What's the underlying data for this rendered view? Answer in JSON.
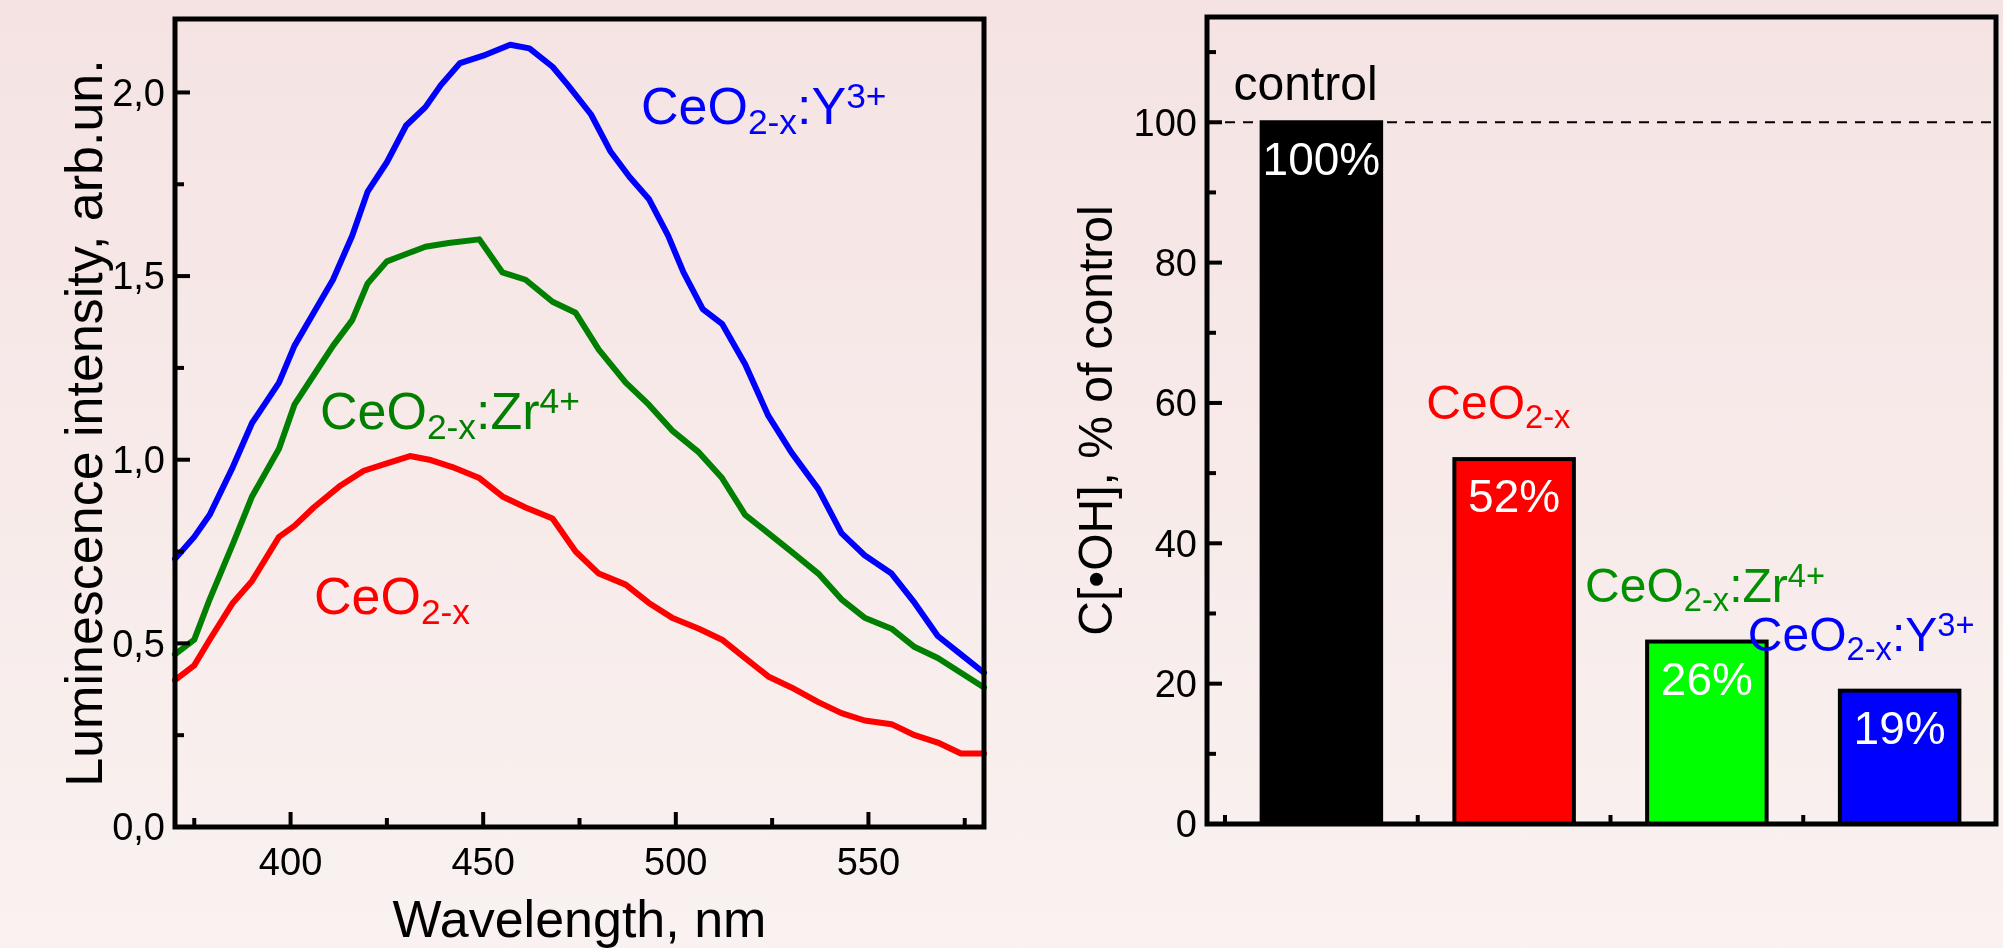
{
  "chart_data": [
    {
      "type": "line",
      "xlabel": "Wavelength, nm",
      "ylabel": "Luminescence intensity, arb.un.",
      "xlim": [
        370,
        580
      ],
      "ylim": [
        0,
        2.2
      ],
      "xticks": [
        {
          "value": 375,
          "label": null
        },
        400,
        {
          "value": 425,
          "label": null
        },
        450,
        {
          "value": 475,
          "label": null
        },
        500,
        {
          "value": 525,
          "label": null
        },
        550,
        {
          "value": 575,
          "label": null
        }
      ],
      "yticks": [
        {
          "value": 0,
          "label": "0,0"
        },
        {
          "value": 0.25,
          "label": null
        },
        {
          "value": 0.5,
          "label": "0,5"
        },
        {
          "value": 0.75,
          "label": null
        },
        {
          "value": 1,
          "label": "1,0"
        },
        {
          "value": 1.25,
          "label": null
        },
        {
          "value": 1.5,
          "label": "1,5"
        },
        {
          "value": 1.75,
          "label": null
        },
        {
          "value": 2,
          "label": "2,0"
        }
      ],
      "legend": false,
      "line_style": "solid",
      "marker": "none",
      "series": [
        {
          "name": "CeO$_{2-x}$:Y$^{3+}$",
          "color": "#0000ff",
          "x": [
            370,
            375,
            379,
            385,
            390,
            397,
            401,
            406,
            411,
            416,
            420,
            425,
            430,
            435,
            439,
            444,
            450,
            457,
            462,
            468,
            472,
            478,
            483,
            488,
            493,
            498,
            502,
            507,
            512,
            518,
            524,
            530,
            537,
            543,
            549,
            556,
            562,
            568,
            574,
            580
          ],
          "values": [
            0.73,
            0.79,
            0.85,
            0.98,
            1.1,
            1.21,
            1.31,
            1.4,
            1.49,
            1.61,
            1.73,
            1.81,
            1.91,
            1.96,
            2.02,
            2.08,
            2.1,
            2.13,
            2.12,
            2.07,
            2.02,
            1.94,
            1.84,
            1.77,
            1.71,
            1.61,
            1.51,
            1.41,
            1.37,
            1.26,
            1.12,
            1.02,
            0.92,
            0.8,
            0.74,
            0.69,
            0.61,
            0.52,
            0.47,
            0.42
          ]
        },
        {
          "name": "CeO$_{2-x}$:Zr$^{4+}$",
          "color": "#007f00",
          "x": [
            370,
            375,
            379,
            385,
            390,
            397,
            401,
            406,
            411,
            416,
            420,
            425,
            430,
            435,
            441,
            449,
            455,
            461,
            468,
            474,
            480,
            487,
            493,
            499,
            506,
            512,
            518,
            524,
            530,
            537,
            543,
            549,
            556,
            562,
            568,
            574,
            580
          ],
          "values": [
            0.47,
            0.51,
            0.62,
            0.77,
            0.9,
            1.03,
            1.15,
            1.23,
            1.31,
            1.38,
            1.48,
            1.54,
            1.56,
            1.58,
            1.59,
            1.6,
            1.51,
            1.49,
            1.43,
            1.4,
            1.3,
            1.21,
            1.15,
            1.08,
            1.02,
            0.95,
            0.85,
            0.8,
            0.75,
            0.69,
            0.62,
            0.57,
            0.54,
            0.49,
            0.46,
            0.42,
            0.38
          ]
        },
        {
          "name": "CeO$_{2-x}$",
          "color": "#ff0000",
          "x": [
            370,
            375,
            379,
            385,
            390,
            397,
            401,
            406,
            413,
            419,
            425,
            431,
            436,
            442,
            449,
            455,
            461,
            468,
            474,
            480,
            487,
            493,
            499,
            506,
            512,
            518,
            524,
            530,
            537,
            543,
            549,
            556,
            562,
            568,
            574,
            580
          ],
          "values": [
            0.4,
            0.44,
            0.51,
            0.61,
            0.67,
            0.79,
            0.82,
            0.87,
            0.93,
            0.97,
            0.99,
            1.01,
            1.0,
            0.98,
            0.95,
            0.9,
            0.87,
            0.84,
            0.75,
            0.69,
            0.66,
            0.61,
            0.57,
            0.54,
            0.51,
            0.46,
            0.41,
            0.38,
            0.34,
            0.31,
            0.29,
            0.28,
            0.25,
            0.23,
            0.2,
            0.2
          ]
        }
      ]
    },
    {
      "type": "bar",
      "ylabel": "C[•OH], % of control",
      "ylim": [
        0,
        115
      ],
      "yticks": [
        0,
        {
          "value": 10,
          "label": null
        },
        20,
        {
          "value": 30,
          "label": null
        },
        40,
        {
          "value": 50,
          "label": null
        },
        60,
        {
          "value": 70,
          "label": null
        },
        80,
        {
          "value": 90,
          "label": null
        },
        100,
        {
          "value": 110,
          "label": null
        }
      ],
      "categories": [
        "control",
        "CeO$_{2-x}$",
        "CeO$_{2-x}$:Zr$^{4+}$",
        "CeO$_{2-x}$:Y$^{3+}$"
      ],
      "values": [
        100,
        52,
        26,
        19
      ],
      "colors": [
        "#000000",
        "#ff0000",
        "#00ff00",
        "#0000ff"
      ],
      "value_labels": [
        "100%",
        "52%",
        "26%",
        "19%"
      ],
      "ref_lines": [
        {
          "axis": "y",
          "value": 100,
          "line_style": "dashed",
          "color": "#000000"
        }
      ]
    }
  ]
}
